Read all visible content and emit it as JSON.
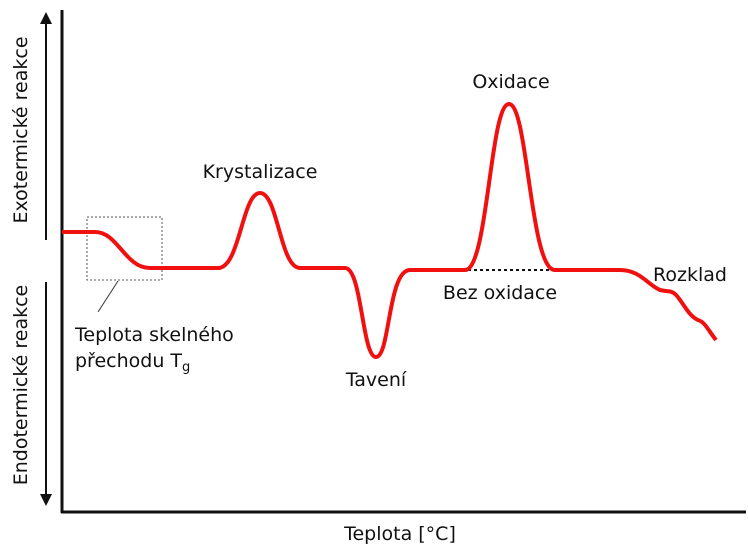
{
  "axes": {
    "y_upper": "Exotermické reakce",
    "y_lower": "Endotermické reakce",
    "x": "Teplota [°C]"
  },
  "annotations": {
    "crystallization": "Krystalizace",
    "oxidation": "Oxidace",
    "melting": "Tavení",
    "no_oxidation": "Bez oxidace",
    "decomposition": "Rozklad",
    "glass_transition": {
      "line1": "Teplota skelného",
      "line2": "přechodu T",
      "line2_sub": "g"
    }
  }
}
